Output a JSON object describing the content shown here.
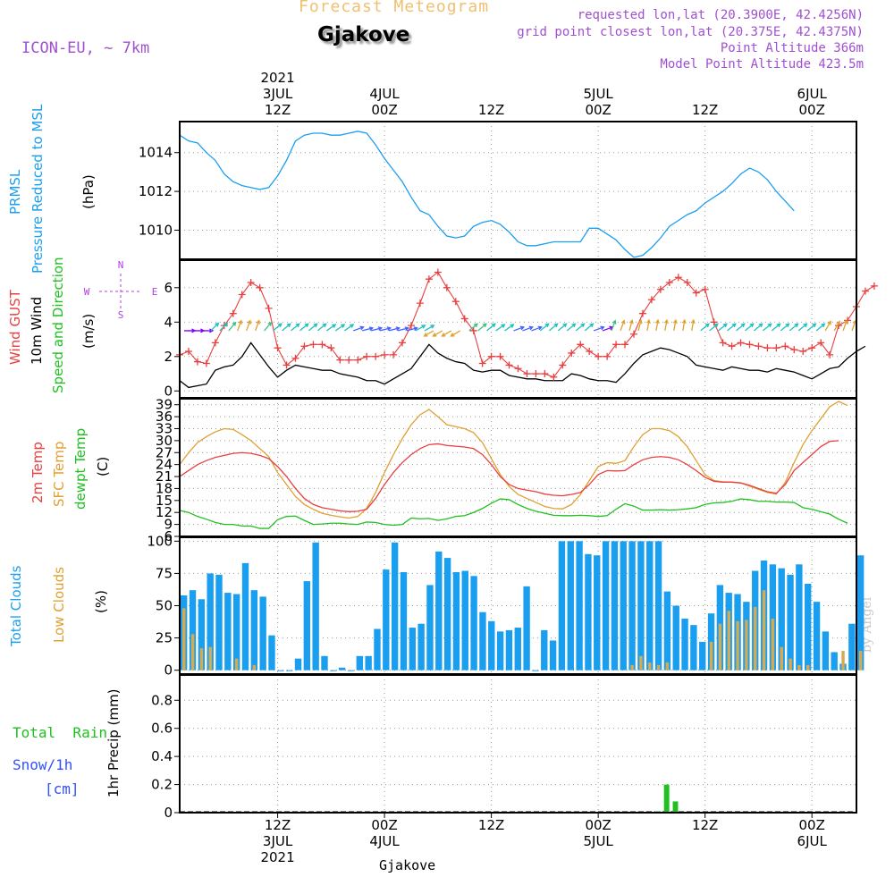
{
  "header": {
    "subtitle": "Forecast Meteogram",
    "station": "Gjakove",
    "model": "ICON-EU, ~ 7km",
    "requested": "requested lon,lat (20.3900E, 42.4256N)",
    "gridpoint": "grid point closest lon,lat (20.375E, 42.4375N)",
    "point_alt": "Point Altitude 366m",
    "model_alt": "Model Point Altitude 423.5m",
    "watermark": "by Angel",
    "footer_station": "Gjakove"
  },
  "time_axis": {
    "top_year": "2021",
    "bottom_year": "2021",
    "labels": [
      {
        "t": 11,
        "top": [
          "3JUL",
          "12Z"
        ],
        "bottom": [
          "12Z",
          "3JUL"
        ]
      },
      {
        "t": 23,
        "top": [
          "4JUL",
          "00Z"
        ],
        "bottom": [
          "00Z",
          "4JUL"
        ]
      },
      {
        "t": 35,
        "top": [
          "12Z"
        ],
        "bottom": [
          "12Z"
        ]
      },
      {
        "t": 47,
        "top": [
          "5JUL",
          "00Z"
        ],
        "bottom": [
          "00Z",
          "5JUL"
        ]
      },
      {
        "t": 59,
        "top": [
          "12Z"
        ],
        "bottom": [
          "12Z"
        ]
      },
      {
        "t": 71,
        "top": [
          "6JUL",
          "00Z"
        ],
        "bottom": [
          "00Z",
          "6JUL"
        ]
      }
    ],
    "t_max": 76
  },
  "colors": {
    "pressure": "#1a9ff0",
    "gust": "#e84040",
    "wind": "#000000",
    "t2m": "#e84040",
    "sfc": "#e0a030",
    "dewpt": "#20c020",
    "total_clouds": "#1a9ff0",
    "low_clouds": "#d8aa50",
    "rain": "#20c020",
    "snow": "#3050ff",
    "compass": "#b040e0",
    "header_purple": "#a050d0",
    "subtitle": "#f0c070"
  },
  "chart_data": [
    {
      "type": "line",
      "id": "pressure",
      "ylabel": [
        "PRMSL",
        "Pressure Reduced to MSL",
        "(hPa)"
      ],
      "ylim": [
        1008.5,
        1015.6
      ],
      "yticks": [
        1010,
        1012,
        1014
      ],
      "series": [
        {
          "name": "PRMSL",
          "values": [
            1014.9,
            1014.6,
            1014.5,
            1014.0,
            1013.6,
            1012.9,
            1012.5,
            1012.3,
            1012.2,
            1012.1,
            1012.2,
            1012.8,
            1013.6,
            1014.6,
            1014.9,
            1015.0,
            1015.0,
            1014.9,
            1014.9,
            1015.0,
            1015.1,
            1015.0,
            1014.4,
            1013.7,
            1013.1,
            1012.5,
            1011.7,
            1011.0,
            1010.8,
            1010.2,
            1009.7,
            1009.6,
            1009.7,
            1010.2,
            1010.4,
            1010.5,
            1010.3,
            1009.9,
            1009.4,
            1009.2,
            1009.2,
            1009.3,
            1009.4,
            1009.4,
            1009.4,
            1009.4,
            1010.1,
            1010.1,
            1009.8,
            1009.5,
            1009.0,
            1008.6,
            1008.7,
            1009.1,
            1009.6,
            1010.2,
            1010.5,
            1010.8,
            1011.0,
            1011.4,
            1011.7,
            1012.0,
            1012.4,
            1012.9,
            1013.2,
            1013.0,
            1012.6,
            1012.0,
            1011.5,
            1011.0
          ]
        }
      ]
    },
    {
      "type": "line",
      "id": "wind",
      "ylabel": [
        "Wind GUST",
        "10m Wind",
        "Speed and Direction",
        "(m/s)"
      ],
      "ylim": [
        -0.4,
        7.6
      ],
      "yticks": [
        0,
        2,
        4,
        6
      ],
      "compass": {
        "n": "N",
        "s": "S",
        "e": "E",
        "w": "W"
      },
      "series": [
        {
          "name": "Wind GUST",
          "values": [
            2.1,
            2.3,
            1.7,
            1.6,
            2.8,
            3.8,
            4.5,
            5.6,
            6.3,
            6.0,
            4.8,
            2.5,
            1.5,
            1.9,
            2.6,
            2.7,
            2.7,
            2.5,
            1.8,
            1.8,
            1.8,
            2.0,
            2.0,
            2.1,
            2.1,
            2.8,
            3.8,
            5.1,
            6.5,
            6.9,
            6.0,
            5.2,
            4.2,
            3.5,
            1.6,
            2.0,
            2.0,
            1.5,
            1.3,
            1.0,
            1.0,
            1.0,
            0.8,
            1.5,
            2.2,
            2.7,
            2.3,
            2.0,
            2.0,
            2.7,
            2.7,
            3.3,
            4.5,
            5.3,
            5.9,
            6.3,
            6.6,
            6.3,
            5.7,
            5.9,
            4.0,
            2.8,
            2.6,
            2.8,
            2.7,
            2.6,
            2.5,
            2.5,
            2.6,
            2.4,
            2.3,
            2.5,
            2.8,
            2.1,
            3.8,
            4.1,
            4.9,
            5.8,
            6.1
          ]
        },
        {
          "name": "10m Wind",
          "values": [
            0.6,
            0.2,
            0.3,
            0.4,
            1.2,
            1.4,
            1.5,
            2.0,
            2.8,
            2.1,
            1.4,
            0.8,
            1.2,
            1.5,
            1.4,
            1.3,
            1.2,
            1.2,
            1.0,
            0.9,
            0.8,
            0.6,
            0.6,
            0.4,
            0.7,
            1.0,
            1.3,
            2.0,
            2.7,
            2.2,
            1.9,
            1.7,
            1.6,
            1.2,
            1.1,
            1.2,
            1.2,
            0.9,
            0.8,
            0.7,
            0.7,
            0.6,
            0.6,
            0.6,
            1.0,
            0.9,
            0.7,
            0.6,
            0.6,
            0.5,
            1.0,
            1.6,
            2.1,
            2.3,
            2.5,
            2.4,
            2.2,
            2.0,
            1.5,
            1.4,
            1.3,
            1.2,
            1.4,
            1.3,
            1.2,
            1.2,
            1.1,
            1.3,
            1.2,
            1.1,
            0.9,
            0.7,
            1.0,
            1.3,
            1.4,
            1.9,
            2.3,
            2.6
          ]
        }
      ],
      "arrow_colors": [
        "#8000ff",
        "#8000ff",
        "#8000ff",
        "#20c0c0",
        "#20c0c0",
        "#40c080",
        "#e0a030",
        "#e0a030",
        "#e0a030",
        "#40c080",
        "#20c0c0",
        "#20c0c0",
        "#20c0c0",
        "#20c0c0",
        "#20c0c0",
        "#20c0c0",
        "#20c0c0",
        "#20c0c0",
        "#20c0c0",
        "#4060ff",
        "#4060ff",
        "#4060ff",
        "#4060ff",
        "#4060ff",
        "#4060ff",
        "#4060ff",
        "#20c0c0",
        "#20c0c0",
        "#e0a030",
        "#e0a030",
        "#e0a030",
        "#e0a030",
        "#40c080",
        "#40c080",
        "#20c0c0",
        "#20c0c0",
        "#20c0c0",
        "#4060ff",
        "#4060ff",
        "#4060ff",
        "#20c0c0",
        "#20c0c0",
        "#20c0c0",
        "#20c0c0",
        "#20c0c0",
        "#20c0c0",
        "#4060ff",
        "#8000ff",
        "#40c080",
        "#e0a030",
        "#e0a030",
        "#e0a030",
        "#e0a030",
        "#e0a030",
        "#e0a030",
        "#e0a030",
        "#e0a030",
        "#e0a030",
        "#20c0c0",
        "#20c0c0",
        "#20c0c0",
        "#20c0c0",
        "#20c0c0",
        "#20c0c0",
        "#20c0c0",
        "#20c0c0",
        "#20c0c0",
        "#20c0c0",
        "#20c0c0",
        "#20c0c0",
        "#20c0c0",
        "#20c0c0",
        "#e0a030",
        "#e0a030",
        "#e0a030",
        "#e0a030"
      ],
      "arrow_dirs_deg": [
        270,
        270,
        270,
        225,
        225,
        220,
        200,
        200,
        200,
        220,
        230,
        230,
        230,
        230,
        230,
        230,
        235,
        235,
        235,
        250,
        255,
        255,
        255,
        255,
        255,
        255,
        240,
        240,
        60,
        60,
        60,
        60,
        230,
        230,
        230,
        235,
        235,
        250,
        250,
        250,
        230,
        230,
        230,
        230,
        230,
        230,
        250,
        250,
        200,
        200,
        195,
        195,
        190,
        190,
        190,
        190,
        190,
        190,
        230,
        230,
        230,
        230,
        230,
        230,
        230,
        230,
        230,
        230,
        230,
        230,
        230,
        230,
        210,
        210,
        200,
        200
      ]
    },
    {
      "type": "line",
      "id": "temp",
      "ylabel": [
        "2m Temp",
        "SFC Temp",
        "dewpt Temp",
        "(C)"
      ],
      "ylim": [
        6,
        40.5
      ],
      "yticks": [
        6,
        9,
        12,
        15,
        18,
        21,
        24,
        27,
        30,
        33,
        36,
        39
      ],
      "series": [
        {
          "name": "2m Temp",
          "values": [
            21.0,
            22.5,
            24.0,
            25.0,
            25.8,
            26.3,
            26.8,
            27.0,
            26.8,
            26.3,
            25.5,
            23.5,
            21.0,
            18.0,
            15.5,
            14.0,
            13.2,
            12.8,
            12.4,
            12.2,
            12.3,
            12.8,
            15.5,
            19.0,
            22.0,
            24.5,
            26.5,
            28.0,
            29.0,
            29.2,
            28.8,
            28.6,
            28.4,
            28.0,
            26.5,
            24.0,
            21.0,
            19.0,
            18.0,
            17.6,
            17.2,
            16.6,
            16.3,
            16.2,
            16.5,
            17.0,
            19.0,
            21.5,
            22.5,
            22.4,
            22.5,
            24.0,
            25.2,
            25.8,
            26.0,
            25.8,
            25.2,
            24.0,
            22.5,
            20.8,
            19.8,
            19.6,
            19.6,
            19.4,
            18.8,
            18.0,
            17.2,
            16.8,
            19.0,
            22.5,
            24.5,
            26.5,
            28.5,
            29.8,
            30.0
          ]
        },
        {
          "name": "SFC Temp",
          "values": [
            24.0,
            27.0,
            29.5,
            31.0,
            32.2,
            33.0,
            32.8,
            31.5,
            30.0,
            28.0,
            26.0,
            22.0,
            19.0,
            16.0,
            14.0,
            12.8,
            11.8,
            11.3,
            10.9,
            10.6,
            11.0,
            13.0,
            17.0,
            22.0,
            26.5,
            30.5,
            34.0,
            36.5,
            37.8,
            36.0,
            34.0,
            33.5,
            33.0,
            32.0,
            29.5,
            25.5,
            21.5,
            18.5,
            16.5,
            15.5,
            14.5,
            13.5,
            13.0,
            12.9,
            14.0,
            16.5,
            20.0,
            23.5,
            24.5,
            24.3,
            25.0,
            28.5,
            31.5,
            33.0,
            33.0,
            32.5,
            31.0,
            28.5,
            25.0,
            21.5,
            20.0,
            19.7,
            19.6,
            19.4,
            18.6,
            17.8,
            17.0,
            16.6,
            19.5,
            24.5,
            29.0,
            32.5,
            35.5,
            38.5,
            39.8,
            38.8
          ]
        },
        {
          "name": "dewpt Temp",
          "values": [
            12.5,
            12.0,
            11.0,
            10.3,
            9.5,
            9.0,
            9.0,
            8.6,
            8.6,
            8.0,
            8.0,
            10.2,
            11.0,
            11.1,
            10.0,
            9.0,
            9.1,
            9.3,
            9.3,
            9.1,
            9.0,
            9.6,
            9.5,
            9.0,
            8.8,
            9.0,
            10.6,
            10.4,
            10.5,
            10.0,
            10.4,
            11.0,
            11.2,
            12.0,
            13.0,
            14.3,
            15.4,
            15.2,
            14.0,
            13.0,
            12.3,
            11.8,
            11.3,
            11.2,
            11.2,
            11.3,
            11.2,
            11.0,
            11.2,
            12.8,
            14.2,
            13.6,
            12.6,
            12.6,
            12.7,
            12.6,
            12.7,
            12.9,
            13.2,
            14.0,
            14.4,
            14.5,
            14.8,
            15.4,
            15.2,
            14.8,
            14.8,
            14.6,
            14.6,
            14.5,
            13.2,
            12.8,
            12.2,
            11.6,
            10.3,
            9.3
          ]
        }
      ]
    },
    {
      "type": "bar",
      "id": "clouds",
      "ylabel": [
        "Total Clouds",
        "Low Clouds",
        "(%)"
      ],
      "ylim": [
        -3,
        103
      ],
      "yticks": [
        0,
        25,
        50,
        75,
        100
      ],
      "series": [
        {
          "name": "Total Clouds",
          "values": [
            58,
            62,
            55,
            75,
            74,
            60,
            59,
            83,
            62,
            57,
            27,
            0,
            0,
            9,
            69,
            99,
            11,
            0,
            2,
            0,
            11,
            11,
            32,
            78,
            99,
            76,
            33,
            36,
            66,
            92,
            87,
            76,
            77,
            73,
            45,
            38,
            30,
            31,
            33,
            65,
            0,
            31,
            23,
            100,
            100,
            100,
            90,
            89,
            100,
            100,
            100,
            100,
            100,
            100,
            100,
            61,
            50,
            40,
            35,
            22,
            44,
            66,
            60,
            59,
            53,
            77,
            85,
            82,
            79,
            74,
            82,
            67,
            53,
            30,
            14,
            5,
            36,
            89
          ]
        },
        {
          "name": "Low Clouds",
          "values": [
            48,
            28,
            17,
            18,
            0,
            0,
            9,
            0,
            4,
            0,
            0,
            0,
            0,
            0,
            0,
            0,
            0,
            0,
            0,
            0,
            0,
            0,
            0,
            0,
            0,
            0,
            0,
            0,
            0,
            0,
            0,
            0,
            0,
            0,
            0,
            0,
            0,
            0,
            0,
            0,
            0,
            0,
            0,
            0,
            0,
            0,
            0,
            0,
            0,
            0,
            0,
            4,
            11,
            6,
            4,
            6,
            0,
            0,
            0,
            0,
            22,
            36,
            46,
            38,
            39,
            49,
            62,
            40,
            18,
            9,
            4,
            4,
            0,
            0,
            0,
            15,
            0,
            15
          ]
        }
      ]
    },
    {
      "type": "bar",
      "id": "precip",
      "ylabel": [
        "1hr Precip (mm)"
      ],
      "left_labels": [
        "Total  Rain",
        "Snow/1h",
        "[cm]"
      ],
      "ylim": [
        0,
        0.98
      ],
      "yticks": [
        0,
        0.2,
        0.4,
        0.6,
        0.8
      ],
      "ytick_labels": [
        "0",
        "0.2",
        "0.4",
        "0.6",
        "0.8"
      ],
      "series": [
        {
          "name": "Total Rain",
          "values": [
            0,
            0,
            0,
            0,
            0,
            0,
            0,
            0,
            0,
            0,
            0,
            0,
            0,
            0,
            0,
            0,
            0,
            0,
            0,
            0,
            0,
            0,
            0,
            0,
            0,
            0,
            0,
            0,
            0,
            0,
            0,
            0,
            0,
            0,
            0,
            0,
            0,
            0,
            0,
            0,
            0,
            0,
            0,
            0,
            0,
            0,
            0,
            0,
            0,
            0,
            0,
            0,
            0,
            0,
            0.01,
            0.2,
            0.08,
            0,
            0,
            0,
            0,
            0,
            0,
            0,
            0,
            0,
            0,
            0,
            0,
            0,
            0,
            0,
            0,
            0,
            0,
            0,
            0,
            0
          ]
        }
      ]
    }
  ]
}
